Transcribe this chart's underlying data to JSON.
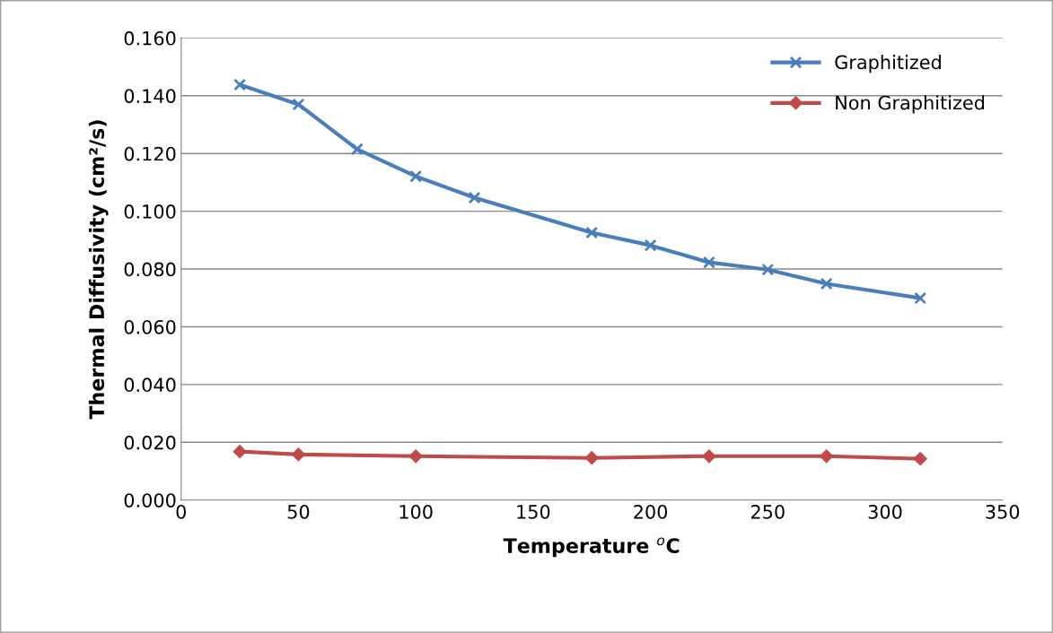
{
  "chart_data": {
    "type": "line",
    "xlabel": "Temperature $^{o}$C",
    "ylabel": "Thermal Diffusivity (cm²/s)",
    "series": [
      {
        "name": "Graphitized",
        "color": "#4a7ebb",
        "marker": "cross",
        "x": [
          25,
          50,
          75,
          100,
          125,
          175,
          200,
          225,
          250,
          275,
          315
        ],
        "values": [
          0.1438,
          0.137,
          0.1215,
          0.1121,
          0.1047,
          0.0926,
          0.0882,
          0.0823,
          0.0798,
          0.0749,
          0.0699
        ]
      },
      {
        "name": "Non Graphitized",
        "color": "#be4b48",
        "marker": "diamond",
        "x": [
          25,
          50,
          100,
          175,
          225,
          275,
          315
        ],
        "values": [
          0.0168,
          0.0158,
          0.0152,
          0.0146,
          0.0152,
          0.0152,
          0.0143
        ]
      }
    ],
    "xlim": [
      0,
      350
    ],
    "xticks": [
      0,
      50,
      100,
      150,
      200,
      250,
      300,
      350
    ],
    "ylim": [
      0,
      0.16
    ],
    "yticks": [
      {
        "value": 0,
        "label": "0.000"
      },
      {
        "value": 0.02,
        "label": "0.020"
      },
      {
        "value": 0.04,
        "label": "0.040"
      },
      {
        "value": 0.06,
        "label": "0.060"
      },
      {
        "value": 0.08,
        "label": "0.080"
      },
      {
        "value": 0.1,
        "label": "0.100"
      },
      {
        "value": 0.12,
        "label": "0.120"
      },
      {
        "value": 0.14,
        "label": "0.140"
      },
      {
        "value": 0.16,
        "label": "0.160"
      }
    ],
    "grid": "y",
    "legend": "top right",
    "line_style": "solid"
  }
}
